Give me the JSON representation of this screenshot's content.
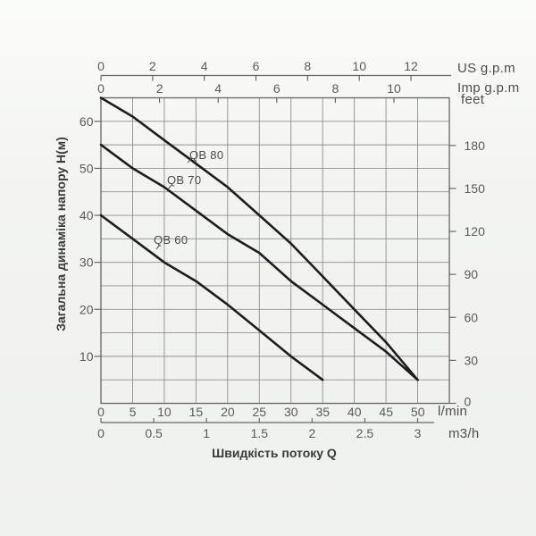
{
  "chart": {
    "y_axis_title": "Загальна динаміка напору Н(м)",
    "x_axis_title": "Швидкість потоку Q",
    "axes": {
      "us": {
        "label": "US g.p.m",
        "ticks": [
          "0",
          "2",
          "4",
          "6",
          "8",
          "10",
          "12"
        ]
      },
      "imp": {
        "label": "Imp g.p.m",
        "ticks": [
          "0",
          "2",
          "4",
          "6",
          "8",
          "10"
        ]
      },
      "feet": {
        "label": "feet",
        "ticks": [
          "180",
          "150",
          "120",
          "90",
          "60",
          "30",
          "0"
        ]
      },
      "lmin": {
        "label": "l/min",
        "ticks": [
          "0",
          "5",
          "10",
          "15",
          "20",
          "25",
          "30",
          "35",
          "40",
          "45",
          "50"
        ]
      },
      "m3h": {
        "label": "m3/h",
        "ticks": [
          "0",
          "0.5",
          "1",
          "1.5",
          "2",
          "2.5",
          "3"
        ]
      },
      "head": {
        "ticks": [
          "60",
          "50",
          "40",
          "30",
          "20",
          "10"
        ]
      }
    }
  },
  "chart_data": {
    "type": "line",
    "title": "Pump head-flow performance curves",
    "xlabel": "Швидкість потоку Q",
    "ylabel": "Загальна динаміка напору Н(м)",
    "x_axes_units": [
      "US g.p.m",
      "Imp g.p.m",
      "l/min",
      "m3/h"
    ],
    "y_axes_units": [
      "m",
      "feet"
    ],
    "xlim_lmin": [
      0,
      55
    ],
    "ylim_m": [
      0,
      65
    ],
    "grid": true,
    "grid_step_lmin": 5,
    "grid_step_m": 5,
    "feet_ticks": [
      180,
      150,
      120,
      90,
      60,
      30,
      0
    ],
    "us_gpm_ticks": [
      0,
      2,
      4,
      6,
      8,
      10,
      12
    ],
    "imp_gpm_ticks": [
      0,
      2,
      4,
      6,
      8,
      10
    ],
    "m3h_ticks": [
      0,
      0.5,
      1,
      1.5,
      2,
      2.5,
      3
    ],
    "series": [
      {
        "name": "QB 80",
        "x_lmin": [
          0,
          5,
          10,
          15,
          20,
          25,
          30,
          35,
          40,
          45,
          50
        ],
        "head_m": [
          65,
          61,
          56,
          51,
          46,
          40,
          34,
          27,
          20,
          13,
          5
        ]
      },
      {
        "name": "QB 70",
        "x_lmin": [
          0,
          5,
          10,
          15,
          20,
          25,
          30,
          35,
          40,
          45,
          50
        ],
        "head_m": [
          55,
          50,
          46,
          41,
          36,
          32,
          26,
          21,
          16,
          11,
          5
        ]
      },
      {
        "name": "QB 60",
        "x_lmin": [
          0,
          5,
          10,
          15,
          20,
          25,
          30,
          35
        ],
        "head_m": [
          40,
          35,
          30,
          26,
          21,
          15.5,
          10,
          5
        ]
      }
    ]
  }
}
